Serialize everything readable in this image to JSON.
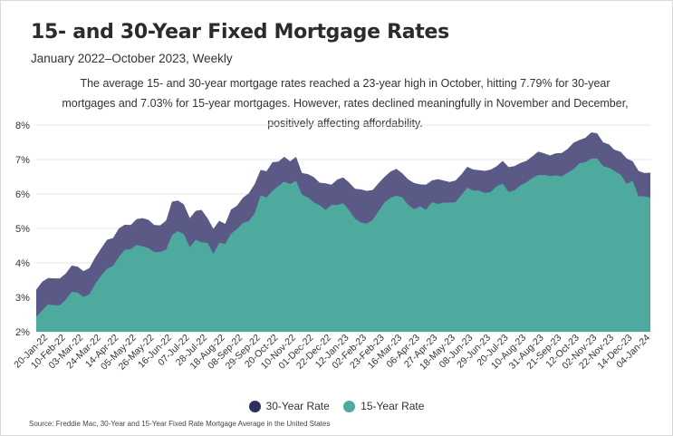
{
  "header": {
    "title": "15- and 30-Year Fixed Mortgage Rates",
    "subtitle": "January 2022–October 2023, Weekly",
    "description": "The average 15- and 30-year mortgage rates reached a 23-year high in October, hitting 7.79% for 30-year mortgages and 7.03% for 15-year mortgages. However, rates declined meaningfully in November and December, positively affecting affordability."
  },
  "legend": {
    "items": [
      {
        "label": "30-Year Rate",
        "color": "#2e2f5e"
      },
      {
        "label": "15-Year Rate",
        "color": "#4ea99f"
      }
    ]
  },
  "footer": {
    "source": "Source:  Freddie Mac, 30-Year  and 15-Year Fixed Rate Mortgage Average in the United States"
  },
  "colors": {
    "series_30": "#5b5a86",
    "series_15": "#4ea99f",
    "grid": "#e6e6e6",
    "axis_text": "#333333"
  },
  "chart_data": {
    "type": "area",
    "ylim": [
      2,
      8
    ],
    "yticks": [
      "2%",
      "3%",
      "4%",
      "5%",
      "6%",
      "7%",
      "8%"
    ],
    "grid": true,
    "legend_position": "bottom-center",
    "x_tick_labels": [
      "20-Jan-22",
      "10-Feb-22",
      "03-Mar-22",
      "24-Mar-22",
      "14-Apr-22",
      "05-May-22",
      "26-May-22",
      "16-Jun-22",
      "07-Jul-22",
      "28-Jul-22",
      "18-Aug-22",
      "08-Sep-22",
      "29-Sep-22",
      "20-Oct-22",
      "10-Nov-22",
      "01-Dec-22",
      "22-Dec-22",
      "12-Jan-23",
      "02-Feb-23",
      "23-Feb-23",
      "16-Mar-23",
      "06-Apr-23",
      "27-Apr-23",
      "18-May-23",
      "08-Jun-23",
      "29-Jun-23",
      "20-Jul-23",
      "10-Aug-23",
      "31-Aug-23",
      "21-Sep-23",
      "12-Oct-23",
      "02-Nov-23",
      "22-Nov-23",
      "14-Dec-23",
      "04-Jan-24"
    ],
    "x": [
      "2022-01-06",
      "2022-01-13",
      "2022-01-20",
      "2022-01-27",
      "2022-02-03",
      "2022-02-10",
      "2022-02-17",
      "2022-02-24",
      "2022-03-03",
      "2022-03-10",
      "2022-03-17",
      "2022-03-24",
      "2022-03-31",
      "2022-04-07",
      "2022-04-14",
      "2022-04-21",
      "2022-04-28",
      "2022-05-05",
      "2022-05-12",
      "2022-05-19",
      "2022-05-26",
      "2022-06-02",
      "2022-06-09",
      "2022-06-16",
      "2022-06-23",
      "2022-06-30",
      "2022-07-07",
      "2022-07-14",
      "2022-07-21",
      "2022-07-28",
      "2022-08-04",
      "2022-08-11",
      "2022-08-18",
      "2022-08-25",
      "2022-09-01",
      "2022-09-08",
      "2022-09-15",
      "2022-09-22",
      "2022-09-29",
      "2022-10-06",
      "2022-10-13",
      "2022-10-20",
      "2022-10-27",
      "2022-11-03",
      "2022-11-10",
      "2022-11-17",
      "2022-11-24",
      "2022-12-01",
      "2022-12-08",
      "2022-12-15",
      "2022-12-22",
      "2022-12-29",
      "2023-01-05",
      "2023-01-12",
      "2023-01-19",
      "2023-01-26",
      "2023-02-02",
      "2023-02-09",
      "2023-02-16",
      "2023-02-23",
      "2023-03-02",
      "2023-03-09",
      "2023-03-16",
      "2023-03-23",
      "2023-03-30",
      "2023-04-06",
      "2023-04-13",
      "2023-04-20",
      "2023-04-27",
      "2023-05-04",
      "2023-05-11",
      "2023-05-18",
      "2023-05-25",
      "2023-06-01",
      "2023-06-08",
      "2023-06-15",
      "2023-06-22",
      "2023-06-29",
      "2023-07-06",
      "2023-07-13",
      "2023-07-20",
      "2023-07-27",
      "2023-08-03",
      "2023-08-10",
      "2023-08-17",
      "2023-08-24",
      "2023-08-31",
      "2023-09-07",
      "2023-09-14",
      "2023-09-21",
      "2023-09-28",
      "2023-10-05",
      "2023-10-12",
      "2023-10-19",
      "2023-10-26",
      "2023-11-02",
      "2023-11-09",
      "2023-11-16",
      "2023-11-22",
      "2023-11-30",
      "2023-12-07",
      "2023-12-14",
      "2023-12-21",
      "2023-12-28",
      "2024-01-04"
    ],
    "series": [
      {
        "name": "30-Year Rate",
        "values": [
          3.22,
          3.45,
          3.56,
          3.55,
          3.55,
          3.69,
          3.92,
          3.89,
          3.76,
          3.85,
          4.16,
          4.42,
          4.67,
          4.72,
          5.0,
          5.11,
          5.1,
          5.27,
          5.3,
          5.25,
          5.1,
          5.09,
          5.23,
          5.78,
          5.81,
          5.7,
          5.3,
          5.51,
          5.54,
          5.3,
          4.99,
          5.22,
          5.13,
          5.55,
          5.66,
          5.89,
          6.02,
          6.29,
          6.7,
          6.66,
          6.92,
          6.94,
          7.08,
          6.95,
          7.08,
          6.61,
          6.58,
          6.49,
          6.33,
          6.31,
          6.27,
          6.42,
          6.48,
          6.33,
          6.15,
          6.13,
          6.09,
          6.12,
          6.32,
          6.5,
          6.65,
          6.73,
          6.6,
          6.42,
          6.32,
          6.28,
          6.27,
          6.39,
          6.43,
          6.39,
          6.35,
          6.39,
          6.57,
          6.79,
          6.71,
          6.69,
          6.67,
          6.71,
          6.81,
          6.96,
          6.78,
          6.81,
          6.9,
          6.96,
          7.09,
          7.23,
          7.18,
          7.12,
          7.18,
          7.19,
          7.31,
          7.49,
          7.57,
          7.63,
          7.79,
          7.76,
          7.5,
          7.44,
          7.29,
          7.22,
          7.03,
          6.95,
          6.67,
          6.61,
          6.62
        ]
      },
      {
        "name": "15-Year Rate",
        "values": [
          2.43,
          2.62,
          2.8,
          2.77,
          2.77,
          2.93,
          3.16,
          3.14,
          3.01,
          3.09,
          3.39,
          3.63,
          3.83,
          3.91,
          4.17,
          4.38,
          4.4,
          4.52,
          4.48,
          4.43,
          4.31,
          4.32,
          4.38,
          4.81,
          4.92,
          4.83,
          4.45,
          4.67,
          4.6,
          4.58,
          4.26,
          4.59,
          4.55,
          4.85,
          4.98,
          5.16,
          5.21,
          5.44,
          5.96,
          5.9,
          6.09,
          6.23,
          6.36,
          6.29,
          6.38,
          5.98,
          5.9,
          5.76,
          5.67,
          5.54,
          5.68,
          5.68,
          5.73,
          5.52,
          5.28,
          5.17,
          5.14,
          5.25,
          5.51,
          5.76,
          5.89,
          5.95,
          5.9,
          5.68,
          5.56,
          5.64,
          5.54,
          5.76,
          5.71,
          5.75,
          5.75,
          5.76,
          5.97,
          6.18,
          6.1,
          6.1,
          6.03,
          6.06,
          6.23,
          6.3,
          6.06,
          6.11,
          6.25,
          6.34,
          6.46,
          6.55,
          6.55,
          6.52,
          6.54,
          6.51,
          6.62,
          6.72,
          6.89,
          6.92,
          7.03,
          7.03,
          6.81,
          6.76,
          6.67,
          6.56,
          6.29,
          6.38,
          5.93,
          5.93,
          5.89
        ]
      }
    ]
  }
}
